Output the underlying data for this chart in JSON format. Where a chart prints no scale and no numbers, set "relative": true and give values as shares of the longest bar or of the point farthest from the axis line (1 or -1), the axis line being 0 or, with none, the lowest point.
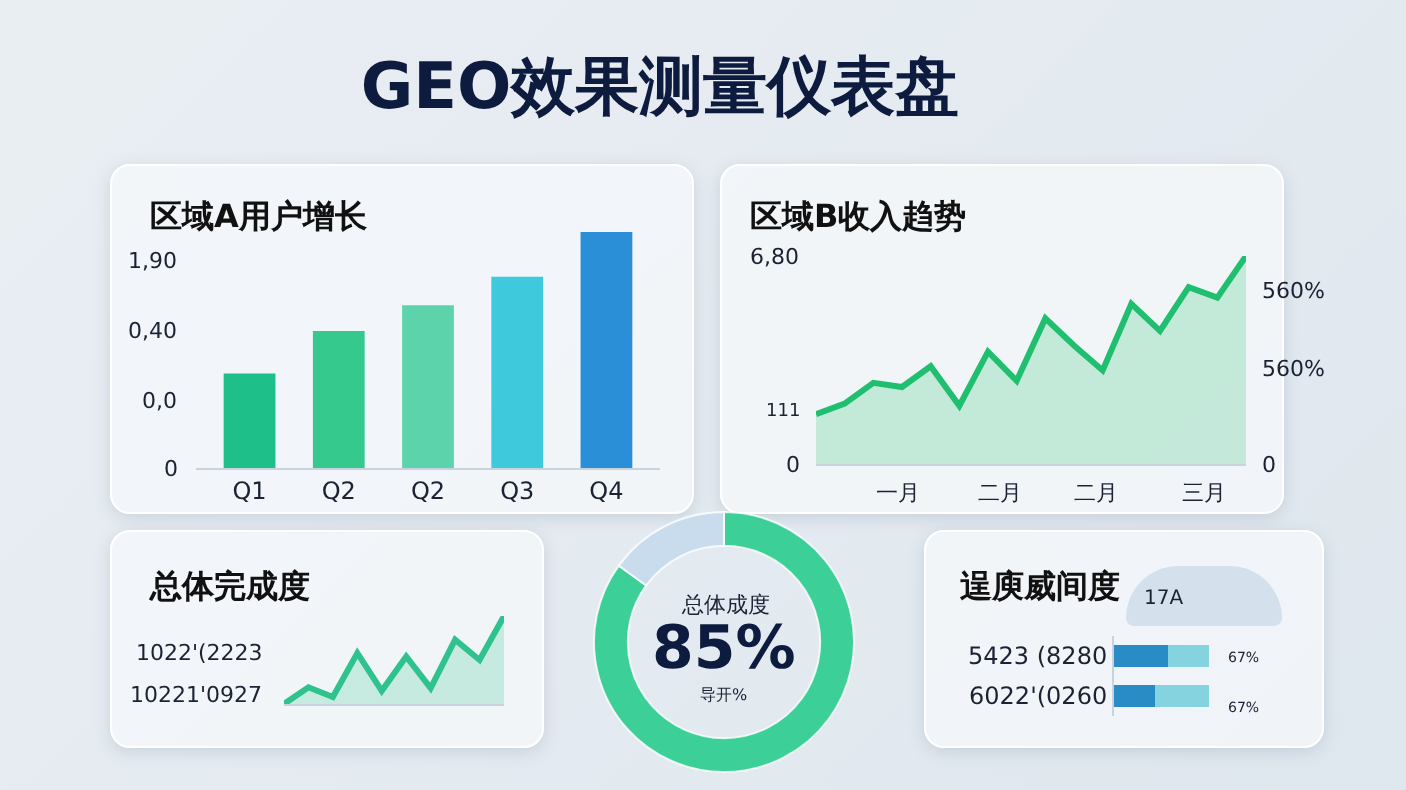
{
  "chart_data": [
    {
      "type": "other",
      "title": "GEO效果测量仪表盘"
    },
    {
      "type": "bar",
      "title": "区域A用户增长",
      "relative": true,
      "categories": [
        "Q1",
        "Q2",
        "Q2",
        "Q3",
        "Q4"
      ],
      "values": [
        0.4,
        0.58,
        0.69,
        0.81,
        1
      ],
      "colors": [
        "#1fbf8a",
        "#35c98e",
        "#5cd3aa",
        "#3ec9dc",
        "#2a8fd6"
      ],
      "annotations": [
        "1,90",
        "0,40",
        "0,0",
        "0"
      ]
    },
    {
      "type": "area",
      "title": "区域B收入趋势",
      "relative": true,
      "categories": [
        null,
        null,
        null,
        null,
        null,
        null,
        null,
        null,
        null,
        null,
        null,
        null,
        null,
        null,
        null,
        null
      ],
      "values": [
        0.24,
        0.29,
        0.39,
        0.37,
        0.47,
        0.28,
        0.54,
        0.4,
        0.7,
        0.57,
        0.45,
        0.77,
        0.64,
        0.85,
        0.8,
        1
      ],
      "color": "#1fbf6f",
      "annotations": [
        "6,80",
        "111",
        "0",
        "560%",
        "560%",
        "0",
        "一月",
        "二月",
        "二月",
        "三月"
      ]
    },
    {
      "type": "area",
      "title": "总体完成度",
      "relative": true,
      "categories": [
        null,
        null,
        null,
        null,
        null,
        null,
        null,
        null,
        null,
        null
      ],
      "values": [
        0,
        0.19,
        0.08,
        0.58,
        0.15,
        0.54,
        0.18,
        0.73,
        0.5,
        1
      ],
      "color": "#2fc28f",
      "annotations": [
        "1022'(2223",
        "10221'0927"
      ]
    },
    {
      "type": "donut",
      "categories": [
        null,
        null
      ],
      "values": [
        85,
        15
      ],
      "colors": [
        "#3ccf97",
        "#c9dcee"
      ],
      "value_labels": [
        "85%",
        null
      ],
      "annotations": [
        "总体成度",
        "导开%"
      ]
    },
    {
      "type": "bar",
      "title": "逞庾威间度",
      "orientation": "horizontal",
      "stacked": true,
      "relative": true,
      "categories": [
        "5423 (8280",
        "6022'(0260"
      ],
      "series": [
        {
          "color": "#2a8cc4",
          "values": [
            0.57,
            0.43
          ]
        },
        {
          "color": "#86d3e0",
          "values": [
            0.43,
            0.57
          ]
        }
      ],
      "annotations": [
        "17A",
        "67%",
        "67%"
      ]
    }
  ]
}
